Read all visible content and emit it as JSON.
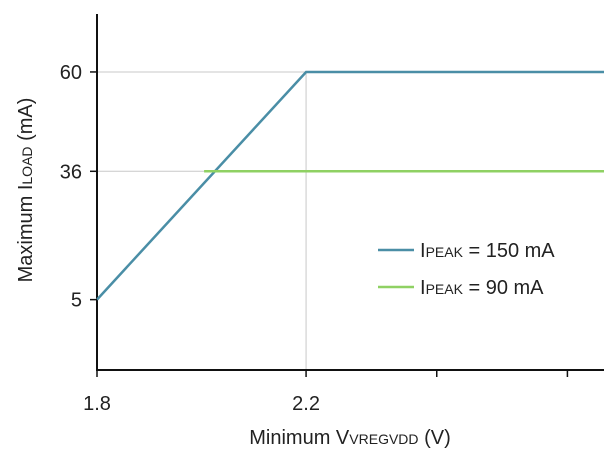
{
  "chart_data": {
    "type": "line",
    "xlabel": {
      "main": "Minimum V",
      "sub": "VREGVDD",
      "unit": " (V)"
    },
    "ylabel": {
      "main": "Maximum I",
      "sub": "LOAD",
      "unit": " (mA)"
    },
    "xticks": [
      1.8,
      2.2,
      2.45,
      2.7
    ],
    "xtick_labels": [
      "1.8",
      "2.2",
      "",
      ""
    ],
    "yticks": [
      5,
      36,
      60
    ],
    "ytick_labels": [
      "5",
      "36",
      "60"
    ],
    "xlim": [
      1.8,
      2.77
    ],
    "ylim": [
      -12,
      74
    ],
    "reference_lines": {
      "x": [
        2.2
      ],
      "y": [
        36,
        60
      ]
    },
    "series": [
      {
        "name": "I",
        "name_sub": "PEAK",
        "name_rest": " = 150 mA",
        "color": "#4a8ea6",
        "x": [
          1.8,
          2.2,
          2.77
        ],
        "y": [
          5,
          60,
          60
        ]
      },
      {
        "name": "I",
        "name_sub": "PEAK",
        "name_rest": " = 90 mA",
        "color": "#8fd163",
        "x": [
          2.005,
          2.77
        ],
        "y": [
          36,
          36
        ]
      }
    ],
    "legend": {
      "placement": "right"
    },
    "grid": false
  }
}
